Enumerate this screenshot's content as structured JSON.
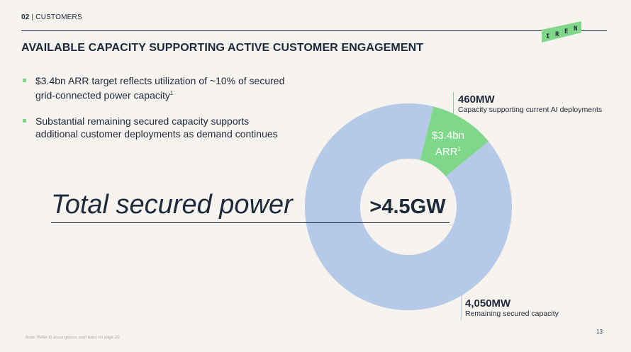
{
  "header": {
    "section_number": "02",
    "section_label": "CUSTOMERS"
  },
  "logo": {
    "letters": [
      "I",
      "R",
      "E",
      "N"
    ],
    "color": "#7fd88a"
  },
  "title": "AVAILABLE CAPACITY SUPPORTING ACTIVE CUSTOMER ENGAGEMENT",
  "bullets": [
    {
      "text": "$3.4bn ARR target reflects utilization of ~10% of secured grid-connected power capacity",
      "sup": "1"
    },
    {
      "text": "Substantial remaining secured capacity supports additional customer deployments as demand continues",
      "sup": ""
    }
  ],
  "headline": "Total secured power",
  "chart_data": {
    "type": "pie",
    "center_label": ">4.5GW",
    "slices": [
      {
        "value": 460,
        "color": "#7fd88a",
        "label": "460MW",
        "description": "Capacity supporting current AI deployments",
        "inner_label": "$3.4bn",
        "inner_label_2": "ARR",
        "inner_sup": "1"
      },
      {
        "value": 4050,
        "color": "#b5c9e8",
        "label": "4,050MW",
        "description": "Remaining secured capacity"
      }
    ]
  },
  "footer": {
    "note": "Note: Refer to assumptions and notes on page 20",
    "page_number": "13"
  }
}
